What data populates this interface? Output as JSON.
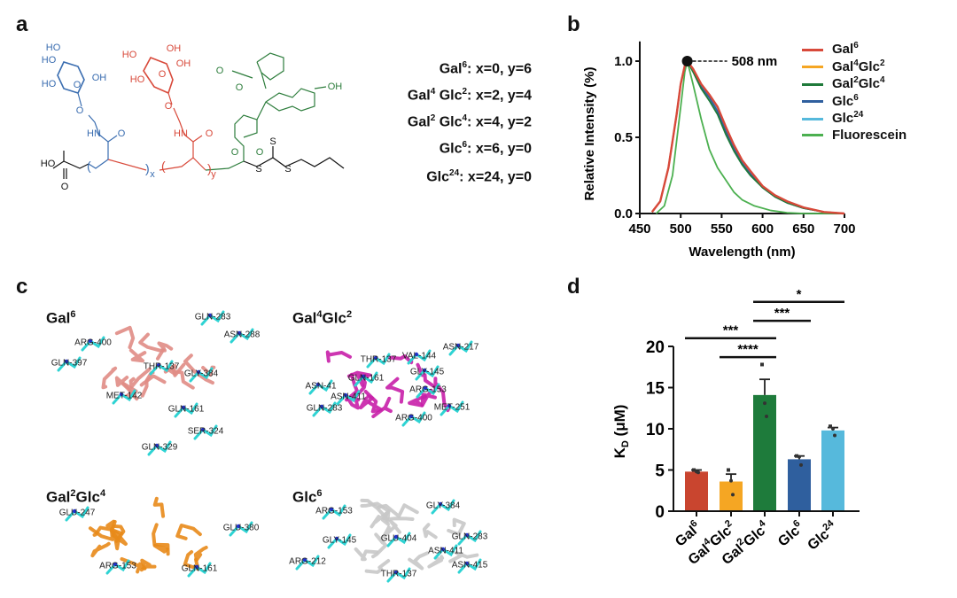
{
  "panel_labels": {
    "a": "a",
    "b": "b",
    "c": "c",
    "d": "d"
  },
  "structure": {
    "atoms": {
      "blue_ho1": "HO",
      "blue_ho2": "HO",
      "blue_oh": "OH",
      "blue_ho3": "HO",
      "blue_o_ring": "O",
      "blue_o": "O",
      "blue_hn": "HN",
      "blue_co": "O",
      "red_ho1": "HO",
      "red_oh1": "OH",
      "red_oh2": "OH",
      "red_ho2": "HO",
      "red_o_ring": "O",
      "red_o": "O",
      "red_hn": "HN",
      "red_co": "O",
      "green_co": "O",
      "green_o": "O",
      "green_oh": "OH",
      "green_o_ester": "O",
      "green_co2": "O",
      "acid_ho": "HO",
      "acid_o": "O",
      "s1": "S",
      "s2": "S",
      "s3": "S",
      "x": "x",
      "y": "y"
    },
    "colors": {
      "glc": "#3a6db0",
      "gal": "#d8493a",
      "fluor": "#2d7d3c",
      "core": "#111111"
    }
  },
  "formulas": [
    {
      "name": "Gal",
      "sup1": "6",
      "name2": "",
      "sup2": "",
      "rest": ":  x=0,  y=6"
    },
    {
      "name": "Gal",
      "sup1": "4",
      "name2": " Glc",
      "sup2": "2",
      "rest": ":  x=2,  y=4"
    },
    {
      "name": "Gal",
      "sup1": "2",
      "name2": " Glc",
      "sup2": "4",
      "rest": ":  x=4,  y=2"
    },
    {
      "name": "Glc",
      "sup1": "6",
      "name2": "",
      "sup2": "",
      "rest": ":  x=6,  y=0"
    },
    {
      "name": "Glc",
      "sup1": "24",
      "name2": "",
      "sup2": "",
      "rest": ": x=24,  y=0"
    }
  ],
  "chart_data": [
    {
      "type": "line",
      "xlabel": "Wavelength (nm)",
      "ylabel": "Relative Intensity (%)",
      "xlim": [
        450,
        700
      ],
      "ylim": [
        0,
        1.1
      ],
      "xticks": [
        "450",
        "500",
        "550",
        "600",
        "650",
        "700"
      ],
      "yticks": [
        "0.0",
        "0.5",
        "1.0"
      ],
      "legend_position": "right",
      "annotation": {
        "text": "508 nm",
        "x": 508,
        "y": 1.0
      },
      "series": [
        {
          "name": "Gal",
          "sup": "6",
          "color": "#d8493a",
          "x": [
            465,
            475,
            485,
            495,
            500,
            505,
            508,
            515,
            525,
            535,
            545,
            555,
            565,
            575,
            585,
            600,
            615,
            630,
            650,
            675,
            700
          ],
          "y": [
            0.01,
            0.08,
            0.3,
            0.65,
            0.85,
            0.97,
            1.0,
            0.95,
            0.85,
            0.78,
            0.7,
            0.57,
            0.45,
            0.35,
            0.28,
            0.18,
            0.12,
            0.08,
            0.04,
            0.01,
            0.0
          ]
        },
        {
          "name": "Gal",
          "sup": "4",
          "name2": "Glc",
          "sup2": "2",
          "color": "#f5a623",
          "x": [
            465,
            475,
            485,
            495,
            500,
            505,
            508,
            515,
            525,
            535,
            545,
            555,
            565,
            575,
            585,
            600,
            615,
            630,
            650,
            675,
            700
          ],
          "y": [
            0.01,
            0.08,
            0.3,
            0.65,
            0.85,
            0.97,
            1.0,
            0.95,
            0.85,
            0.78,
            0.7,
            0.57,
            0.45,
            0.35,
            0.28,
            0.18,
            0.12,
            0.08,
            0.04,
            0.01,
            0.0
          ]
        },
        {
          "name": "Gal",
          "sup": "2",
          "name2": "Glc",
          "sup2": "4",
          "color": "#1f7a3a",
          "x": [
            465,
            475,
            485,
            495,
            500,
            505,
            508,
            515,
            525,
            535,
            545,
            555,
            565,
            575,
            585,
            600,
            615,
            630,
            650,
            675,
            700
          ],
          "y": [
            0.01,
            0.08,
            0.3,
            0.65,
            0.85,
            0.97,
            1.0,
            0.93,
            0.82,
            0.74,
            0.65,
            0.52,
            0.41,
            0.32,
            0.25,
            0.17,
            0.11,
            0.07,
            0.035,
            0.01,
            0.0
          ]
        },
        {
          "name": "Glc",
          "sup": "6",
          "color": "#2f5f9e",
          "x": [
            465,
            475,
            485,
            495,
            500,
            505,
            508,
            515,
            525,
            535,
            545,
            555,
            565,
            575,
            585,
            600,
            615,
            630,
            650,
            675,
            700
          ],
          "y": [
            0.01,
            0.08,
            0.3,
            0.65,
            0.85,
            0.97,
            1.0,
            0.94,
            0.83,
            0.76,
            0.67,
            0.54,
            0.43,
            0.33,
            0.26,
            0.17,
            0.11,
            0.07,
            0.035,
            0.01,
            0.0
          ]
        },
        {
          "name": "Glc",
          "sup": "24",
          "color": "#56b9dc",
          "x": [
            465,
            475,
            485,
            495,
            500,
            505,
            508,
            515,
            525,
            535,
            545,
            555,
            565,
            575,
            585,
            600,
            615,
            630,
            650,
            675,
            700
          ],
          "y": [
            0.01,
            0.08,
            0.3,
            0.65,
            0.85,
            0.97,
            1.0,
            0.94,
            0.84,
            0.77,
            0.69,
            0.56,
            0.44,
            0.34,
            0.27,
            0.18,
            0.12,
            0.08,
            0.04,
            0.01,
            0.0
          ]
        },
        {
          "name": "Fluorescein",
          "sup": "",
          "color": "#4cb050",
          "x": [
            470,
            480,
            490,
            500,
            505,
            508,
            515,
            525,
            535,
            545,
            555,
            565,
            575,
            590,
            610,
            630,
            650,
            700
          ],
          "y": [
            0.0,
            0.05,
            0.25,
            0.7,
            0.93,
            1.0,
            0.85,
            0.62,
            0.42,
            0.3,
            0.22,
            0.14,
            0.09,
            0.05,
            0.02,
            0.005,
            0.0,
            0.0
          ]
        }
      ]
    },
    {
      "type": "bar",
      "ylabel": "K",
      "ylabel_sub": "D",
      "ylabel_unit": " (μM)",
      "ylim": [
        0,
        20
      ],
      "yticks": [
        "0",
        "5",
        "10",
        "15",
        "20"
      ],
      "categories": [
        {
          "name": "Gal",
          "sup": "6",
          "name2": "",
          "sup2": ""
        },
        {
          "name": "Gal",
          "sup": "4",
          "name2": "Glc",
          "sup2": "2"
        },
        {
          "name": "Gal",
          "sup": "2",
          "name2": "Glc",
          "sup2": "4"
        },
        {
          "name": "Glc",
          "sup": "6",
          "name2": "",
          "sup2": ""
        },
        {
          "name": "Glc",
          "sup": "24",
          "name2": "",
          "sup2": ""
        }
      ],
      "values": [
        4.8,
        3.6,
        14.1,
        6.3,
        9.8
      ],
      "errors": [
        0.2,
        0.9,
        1.9,
        0.4,
        0.35
      ],
      "points": [
        [
          5.0,
          4.8,
          4.7
        ],
        [
          5.0,
          3.7,
          2.0
        ],
        [
          17.8,
          13.1,
          11.5
        ],
        [
          6.7,
          6.6,
          5.6
        ],
        [
          10.3,
          10.0,
          9.2
        ]
      ],
      "colors": [
        "#c9452f",
        "#f5a623",
        "#1e7b3b",
        "#2f5f9e",
        "#56b9dc"
      ],
      "significance": [
        {
          "from": 0,
          "to": 2,
          "level": 21.0,
          "label": "***"
        },
        {
          "from": 1,
          "to": 2,
          "level": 18.7,
          "label": "****"
        },
        {
          "from": 2,
          "to": 3,
          "level": 23.1,
          "label": "***"
        },
        {
          "from": 2,
          "to": 4,
          "level": 25.4,
          "label": "*"
        }
      ]
    }
  ],
  "docking": [
    {
      "title": "Gal",
      "sup1": "6",
      "title2": "",
      "sup2": "",
      "color": "#e08c85",
      "residues": [
        "ARG-400",
        "GLN-397",
        "THR-137",
        "MET-142",
        "GLN-283",
        "ASN-288",
        "GLY-384",
        "GLN-161",
        "SER-324",
        "GLN-329"
      ]
    },
    {
      "title": "Gal",
      "sup1": "4",
      "title2": "Glc",
      "sup2": "2",
      "color": "#c81fa8",
      "residues": [
        "THR-137",
        "VAL-144",
        "ASN-217",
        "GLY-145",
        "GLN-161",
        "ASN-41",
        "ASN-411",
        "GLN-283",
        "ARG-153",
        "MET-251",
        "ARG-400"
      ]
    },
    {
      "title": "Gal",
      "sup1": "2",
      "title2": "Glc",
      "sup2": "4",
      "color": "#e8891a",
      "residues": [
        "GLU-247",
        "ARG-153",
        "GLU-380",
        "GLN-161"
      ]
    },
    {
      "title": "Glc",
      "sup1": "6",
      "title2": "",
      "sup2": "",
      "color": "#c8c8c8",
      "residues": [
        "ARG-153",
        "GLY-145",
        "ARG-212",
        "GLU-404",
        "THR-137",
        "GLY-384",
        "GLN-283",
        "ASN-411",
        "ASN-415"
      ]
    }
  ]
}
